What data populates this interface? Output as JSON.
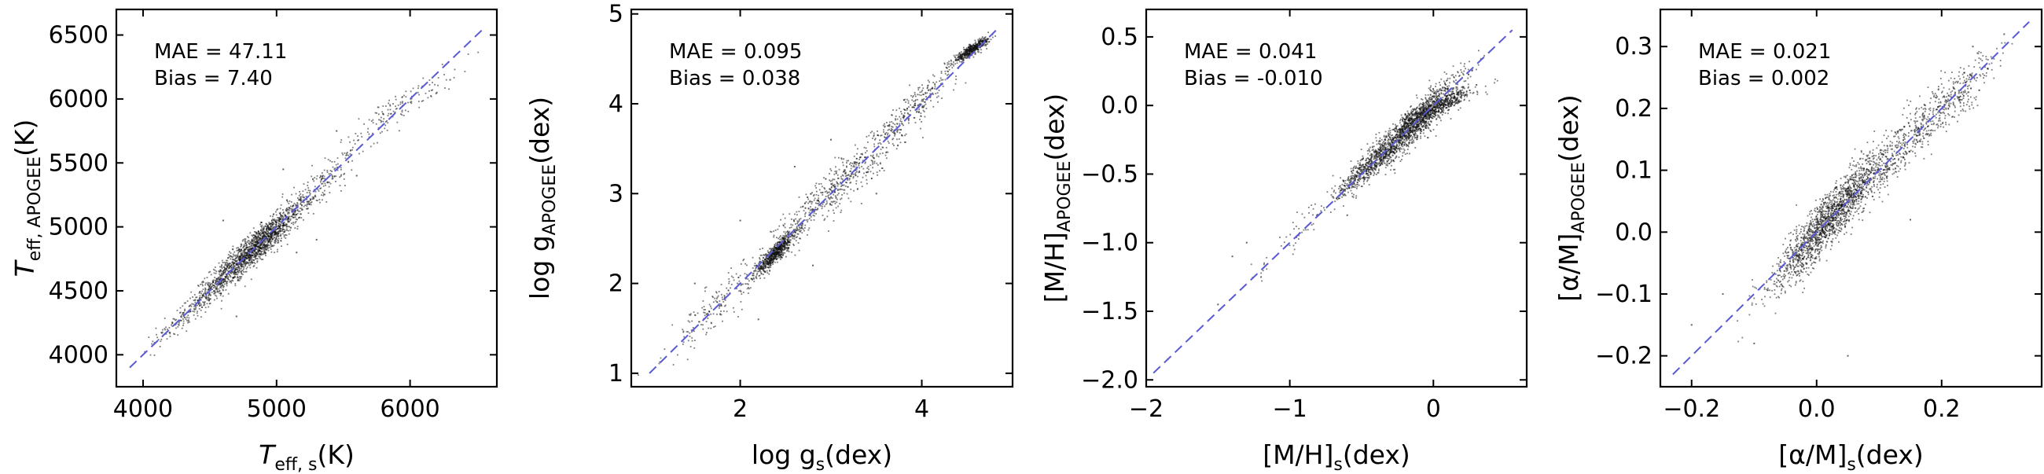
{
  "chart_data": [
    {
      "type": "scatter",
      "id": "teff",
      "xlabel": {
        "main": "T",
        "sub": "eff, s",
        "unit": "(K)",
        "italic": true
      },
      "ylabel": {
        "main": "T",
        "sub": "eff, APOGEE",
        "unit": "(K)",
        "italic": true
      },
      "xlim": [
        3800,
        6650
      ],
      "ylim": [
        3750,
        6700
      ],
      "xticks": [
        {
          "v": 4000,
          "label": "4000"
        },
        {
          "v": 5000,
          "label": "5000"
        },
        {
          "v": 6000,
          "label": "6000"
        }
      ],
      "yticks": [
        {
          "v": 4000,
          "label": "4000"
        },
        {
          "v": 4500,
          "label": "4500"
        },
        {
          "v": 5000,
          "label": "5000"
        },
        {
          "v": 5500,
          "label": "5500"
        },
        {
          "v": 6000,
          "label": "6000"
        },
        {
          "v": 6500,
          "label": "6500"
        }
      ],
      "line": [
        [
          3900,
          3900
        ],
        [
          6550,
          6550
        ]
      ],
      "stats": {
        "mae_label": "MAE = 47.11",
        "bias_label": "Bias =  7.40"
      },
      "clusters": [
        {
          "cx": 4850,
          "cy": 4850,
          "sx": 170,
          "sy": 160,
          "n": 1400
        },
        {
          "cx": 4500,
          "cy": 4480,
          "sx": 150,
          "sy": 140,
          "n": 300
        },
        {
          "cx": 5250,
          "cy": 5250,
          "sx": 180,
          "sy": 190,
          "n": 250
        },
        {
          "cx": 5900,
          "cy": 5920,
          "sx": 220,
          "sy": 160,
          "n": 140
        },
        {
          "cx": 4150,
          "cy": 4150,
          "sx": 120,
          "sy": 110,
          "n": 40
        }
      ],
      "outliers": [
        [
          5050,
          5450
        ],
        [
          5300,
          4900
        ],
        [
          4600,
          5050
        ],
        [
          5600,
          5400
        ],
        [
          5450,
          5750
        ],
        [
          6200,
          6050
        ],
        [
          6300,
          6150
        ],
        [
          5150,
          4800
        ],
        [
          4700,
          4300
        ]
      ]
    },
    {
      "type": "scatter",
      "id": "logg",
      "xlabel": {
        "main": "log g",
        "sub": "s",
        "unit": "(dex)",
        "italic": false
      },
      "ylabel": {
        "main": "log g",
        "sub": "APOGEE",
        "unit": "(dex)",
        "italic": false
      },
      "xlim": [
        0.8,
        5.0
      ],
      "ylim": [
        0.85,
        5.05
      ],
      "xticks": [
        {
          "v": 2,
          "label": "2"
        },
        {
          "v": 4,
          "label": "4"
        }
      ],
      "yticks": [
        {
          "v": 1,
          "label": "1"
        },
        {
          "v": 2,
          "label": "2"
        },
        {
          "v": 3,
          "label": "3"
        },
        {
          "v": 4,
          "label": "4"
        },
        {
          "v": 5,
          "label": "5"
        }
      ],
      "line": [
        [
          1.0,
          1.0
        ],
        [
          4.85,
          4.85
        ]
      ],
      "stats": {
        "mae_label": "MAE = 0.095",
        "bias_label": "Bias = 0.038"
      },
      "clusters": [
        {
          "cx": 2.4,
          "cy": 2.35,
          "sx": 0.12,
          "sy": 0.13,
          "n": 700
        },
        {
          "cx": 4.55,
          "cy": 4.6,
          "sx": 0.1,
          "sy": 0.07,
          "n": 500
        },
        {
          "cx": 3.1,
          "cy": 3.1,
          "sx": 0.35,
          "sy": 0.33,
          "n": 500
        },
        {
          "cx": 1.8,
          "cy": 1.8,
          "sx": 0.3,
          "sy": 0.3,
          "n": 200
        },
        {
          "cx": 3.9,
          "cy": 3.95,
          "sx": 0.25,
          "sy": 0.24,
          "n": 250
        }
      ],
      "outliers": [
        [
          2.6,
          3.3
        ],
        [
          2.2,
          1.6
        ],
        [
          2.8,
          2.2
        ],
        [
          1.5,
          2.0
        ],
        [
          3.5,
          3.0
        ],
        [
          2.0,
          2.7
        ],
        [
          3.0,
          3.6
        ]
      ]
    },
    {
      "type": "scatter",
      "id": "mh",
      "xlabel": {
        "main": "[M/H]",
        "sub": "s",
        "unit": "(dex)",
        "italic": false
      },
      "ylabel": {
        "main": "[M/H]",
        "sub": "APOGEE",
        "unit": "(dex)",
        "italic": false
      },
      "xlim": [
        -2.0,
        0.65
      ],
      "ylim": [
        -2.05,
        0.7
      ],
      "xticks": [
        {
          "v": -2,
          "label": "−2"
        },
        {
          "v": -1,
          "label": "−1"
        },
        {
          "v": 0,
          "label": "0"
        }
      ],
      "yticks": [
        {
          "v": -2.0,
          "label": "−2.0"
        },
        {
          "v": -1.5,
          "label": "−1.5"
        },
        {
          "v": -1.0,
          "label": "−1.0"
        },
        {
          "v": -0.5,
          "label": "−0.5"
        },
        {
          "v": 0.0,
          "label": "0.0"
        },
        {
          "v": 0.5,
          "label": "0.5"
        }
      ],
      "line": [
        [
          -1.95,
          -1.95
        ],
        [
          0.55,
          0.55
        ]
      ],
      "stats": {
        "mae_label": "MAE =  0.041",
        "bias_label": "Bias  = -0.010"
      },
      "clusters": [
        {
          "cx": -0.15,
          "cy": -0.15,
          "sx": 0.17,
          "sy": 0.17,
          "n": 1600
        },
        {
          "cx": -0.45,
          "cy": -0.45,
          "sx": 0.12,
          "sy": 0.12,
          "n": 400
        },
        {
          "cx": 0.05,
          "cy": 0.0,
          "sx": 0.12,
          "sy": 0.06,
          "n": 350
        },
        {
          "cx": -0.9,
          "cy": -0.88,
          "sx": 0.18,
          "sy": 0.18,
          "n": 60
        }
      ],
      "outliers": [
        [
          -1.4,
          -1.1
        ],
        [
          -1.3,
          -1.0
        ],
        [
          -1.85,
          -1.85
        ],
        [
          -1.5,
          -1.45
        ],
        [
          -1.2,
          -1.25
        ],
        [
          0.3,
          0.15
        ],
        [
          -0.6,
          -0.8
        ]
      ]
    },
    {
      "type": "scatter",
      "id": "alpha",
      "xlabel": {
        "main": "[α/M]",
        "sub": "s",
        "unit": "(dex)",
        "italic": false
      },
      "ylabel": {
        "main": "[α/M]",
        "sub": "APOGEE",
        "unit": "(dex)",
        "italic": false
      },
      "xlim": [
        -0.25,
        0.36
      ],
      "ylim": [
        -0.25,
        0.36
      ],
      "xticks": [
        {
          "v": -0.2,
          "label": "−0.2"
        },
        {
          "v": 0.0,
          "label": "0.0"
        },
        {
          "v": 0.2,
          "label": "0.2"
        }
      ],
      "yticks": [
        {
          "v": -0.2,
          "label": "−0.2"
        },
        {
          "v": -0.1,
          "label": "−0.1"
        },
        {
          "v": 0.0,
          "label": "0.0"
        },
        {
          "v": 0.1,
          "label": "0.1"
        },
        {
          "v": 0.2,
          "label": "0.2"
        },
        {
          "v": 0.3,
          "label": "0.3"
        }
      ],
      "line": [
        [
          -0.23,
          -0.23
        ],
        [
          0.34,
          0.34
        ]
      ],
      "stats": {
        "mae_label": "MAE = 0.021",
        "bias_label": "Bias = 0.002"
      },
      "clusters": [
        {
          "cx": 0.02,
          "cy": 0.02,
          "sx": 0.045,
          "sy": 0.055,
          "n": 1600
        },
        {
          "cx": 0.2,
          "cy": 0.2,
          "sx": 0.05,
          "sy": 0.05,
          "n": 450
        },
        {
          "cx": 0.1,
          "cy": 0.1,
          "sx": 0.05,
          "sy": 0.05,
          "n": 300
        }
      ],
      "outliers": [
        [
          -0.15,
          -0.1
        ],
        [
          -0.1,
          -0.18
        ],
        [
          0.05,
          -0.2
        ],
        [
          0.3,
          0.32
        ],
        [
          0.25,
          0.3
        ],
        [
          -0.2,
          -0.15
        ],
        [
          0.15,
          0.02
        ]
      ]
    }
  ]
}
